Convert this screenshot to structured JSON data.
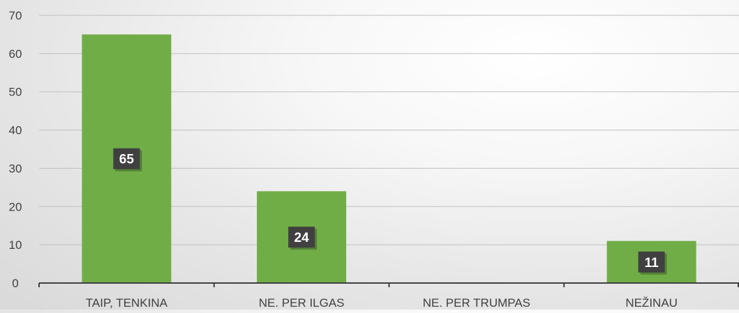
{
  "chart_data": {
    "type": "bar",
    "categories": [
      "TAIP, TENKINA",
      "NE. PER ILGAS",
      "NE. PER TRUMPAS",
      "NEŽINAU"
    ],
    "values": [
      65,
      24,
      0,
      11
    ],
    "data_labels": [
      "65",
      "24",
      "",
      "11"
    ],
    "title": "",
    "xlabel": "",
    "ylabel": "",
    "ylim": [
      0,
      70
    ],
    "yticks": [
      "0",
      "10",
      "20",
      "30",
      "40",
      "50",
      "60",
      "70"
    ],
    "grid": true,
    "legend": "none",
    "colors": {
      "bar": "#70ad47",
      "label_box": "#404040",
      "label_text": "#ffffff",
      "grid": "#bfbfbf",
      "axis": "#404040",
      "tick_text": "#404040"
    }
  }
}
